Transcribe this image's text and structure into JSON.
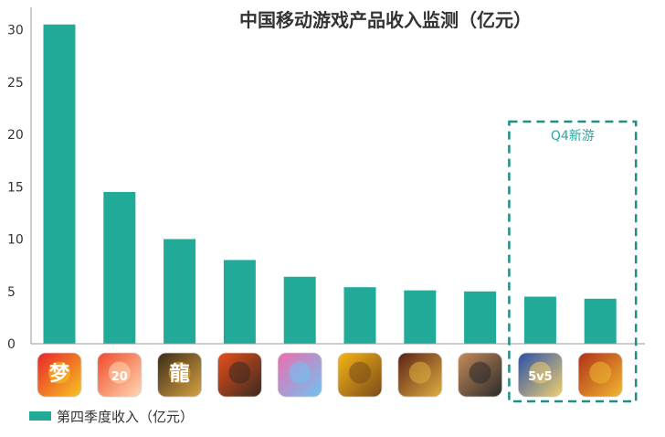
{
  "chart_data": {
    "type": "bar",
    "title": "中国移动游戏产品收入监测（亿元）",
    "xlabel": "",
    "ylabel": "",
    "ylim": [
      0,
      30
    ],
    "yticks": [
      0,
      5,
      10,
      15,
      20,
      25,
      30
    ],
    "grid": false,
    "legend_position": "bottom-left",
    "series": [
      {
        "name": "第四季度收入（亿元）",
        "color": "#22aa99",
        "values": [
          30.5,
          14.5,
          10.0,
          8.0,
          6.4,
          5.4,
          5.1,
          5.0,
          4.5,
          4.3
        ]
      }
    ],
    "categories": [
      {
        "icon": "menghuan-xiyou-icon",
        "colors": [
          "#e8242b",
          "#f7c520"
        ],
        "glyph": "梦"
      },
      {
        "icon": "dahua-xiyou-icon",
        "colors": [
          "#f04a2b",
          "#ffd9b3"
        ],
        "glyph": "20"
      },
      {
        "icon": "long-game-icon",
        "colors": [
          "#3b2a18",
          "#d9a441"
        ],
        "glyph": "龍"
      },
      {
        "icon": "kof-character-icon",
        "colors": [
          "#e84f1a",
          "#3a2a20"
        ],
        "glyph": ""
      },
      {
        "icon": "pink-hair-character-icon",
        "colors": [
          "#f06bb0",
          "#6ec3f0"
        ],
        "glyph": ""
      },
      {
        "icon": "clash-of-clans-icon",
        "colors": [
          "#f7b614",
          "#7a4a1a"
        ],
        "glyph": ""
      },
      {
        "icon": "king-warrior-icon",
        "colors": [
          "#5a2016",
          "#e0b040"
        ],
        "glyph": ""
      },
      {
        "icon": "sunglasses-character-icon",
        "colors": [
          "#c58b5a",
          "#2a2a2a"
        ],
        "glyph": ""
      },
      {
        "icon": "honor-of-kings-icon",
        "colors": [
          "#2a4fa8",
          "#f0d070"
        ],
        "glyph": "5v5"
      },
      {
        "icon": "golden-dragon-icon",
        "colors": [
          "#b03018",
          "#f0b830"
        ],
        "glyph": ""
      }
    ],
    "annotations": [
      {
        "text": "Q4新游",
        "covers_categories": [
          8,
          9
        ],
        "style": "dashed-box",
        "color": "#1f8f86"
      }
    ]
  }
}
